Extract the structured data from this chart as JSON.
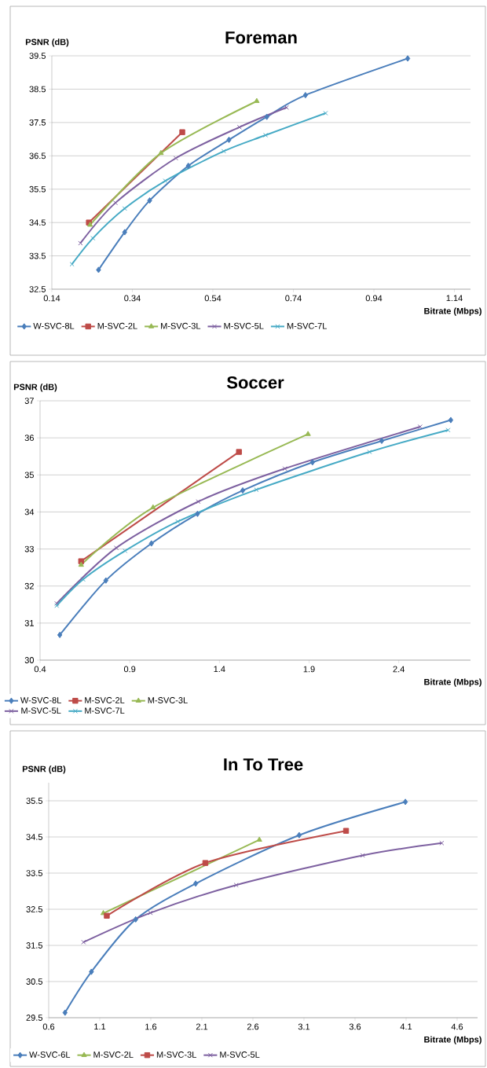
{
  "chart_data": [
    {
      "type": "line",
      "title": "Foreman",
      "xlabel": "Bitrate (Mbps)",
      "ylabel": "PSNR (dB)",
      "xlim": [
        0.14,
        1.18
      ],
      "ylim": [
        32.5,
        39.5
      ],
      "xticks": [
        0.14,
        0.34,
        0.54,
        0.74,
        0.94,
        1.14
      ],
      "yticks": [
        32.5,
        33.5,
        34.5,
        35.5,
        36.5,
        37.5,
        38.5,
        39.5
      ],
      "grid": "y",
      "legend": "bottom",
      "line_style": "solid",
      "series": [
        {
          "name": "W-SVC-8L",
          "color": "#4a7ebb",
          "marker": "diamond",
          "x": [
            0.256,
            0.321,
            0.383,
            0.479,
            0.58,
            0.674,
            0.77,
            1.024
          ],
          "values": [
            33.08,
            34.21,
            35.16,
            36.2,
            36.98,
            37.67,
            38.32,
            39.42
          ]
        },
        {
          "name": "M-SVC-2L",
          "color": "#be4b48",
          "marker": "square",
          "x": [
            0.232,
            0.464
          ],
          "values": [
            34.5,
            37.21
          ]
        },
        {
          "name": "M-SVC-3L",
          "color": "#98b954",
          "marker": "triangle",
          "x": [
            0.235,
            0.411,
            0.649
          ],
          "values": [
            34.43,
            36.58,
            38.14
          ]
        },
        {
          "name": "M-SVC-5L",
          "color": "#7d60a0",
          "marker": "cross",
          "x": [
            0.211,
            0.298,
            0.448,
            0.606,
            0.723
          ],
          "values": [
            33.88,
            35.09,
            36.43,
            37.36,
            37.95
          ]
        },
        {
          "name": "M-SVC-7L",
          "color": "#46aac5",
          "marker": "cross",
          "x": [
            0.19,
            0.242,
            0.321,
            0.422,
            0.567,
            0.671,
            0.82
          ],
          "values": [
            33.25,
            34.03,
            34.92,
            35.75,
            36.64,
            37.12,
            37.78
          ]
        }
      ]
    },
    {
      "type": "line",
      "title": "Soccer",
      "xlabel": "Bitrate (Mbps)",
      "ylabel": "PSNR (dB)",
      "xlim": [
        0.4,
        2.8
      ],
      "ylim": [
        30,
        37
      ],
      "xticks": [
        0.4,
        0.9,
        1.4,
        1.9,
        2.4
      ],
      "yticks": [
        30,
        31,
        32,
        33,
        34,
        35,
        36,
        37
      ],
      "grid": "y",
      "legend": "bottom",
      "line_style": "solid",
      "series": [
        {
          "name": "W-SVC-8L",
          "color": "#4a7ebb",
          "marker": "diamond",
          "x": [
            0.51,
            0.767,
            1.021,
            1.278,
            1.53,
            1.919,
            2.305,
            2.69
          ],
          "values": [
            30.68,
            32.15,
            33.15,
            33.95,
            34.58,
            35.34,
            35.92,
            36.48
          ]
        },
        {
          "name": "M-SVC-2L",
          "color": "#be4b48",
          "marker": "square",
          "x": [
            0.629,
            1.509
          ],
          "values": [
            32.67,
            35.62
          ]
        },
        {
          "name": "M-SVC-3L",
          "color": "#98b954",
          "marker": "triangle",
          "x": [
            0.629,
            1.03,
            1.894
          ],
          "values": [
            32.57,
            34.12,
            36.1
          ]
        },
        {
          "name": "M-SVC-5L",
          "color": "#7d60a0",
          "marker": "cross",
          "x": [
            0.493,
            0.825,
            1.282,
            1.765,
            2.519
          ],
          "values": [
            31.53,
            33.03,
            34.28,
            35.17,
            36.3
          ]
        },
        {
          "name": "M-SVC-7L",
          "color": "#46aac5",
          "marker": "cross",
          "x": [
            0.493,
            0.64,
            0.874,
            1.168,
            1.606,
            2.237,
            2.675
          ],
          "values": [
            31.47,
            32.18,
            32.95,
            33.74,
            34.6,
            35.62,
            36.21
          ]
        }
      ]
    },
    {
      "type": "line",
      "title": "In To Tree",
      "xlabel": "Bitrate (Mbps)",
      "ylabel": "PSNR (dB)",
      "xlim": [
        0.6,
        4.8
      ],
      "ylim": [
        29.5,
        36
      ],
      "xticks": [
        0.6,
        1.1,
        1.6,
        2.1,
        2.6,
        3.1,
        3.6,
        4.1,
        4.6
      ],
      "yticks": [
        29.5,
        30.5,
        31.5,
        32.5,
        33.5,
        34.5,
        35.5
      ],
      "grid": "y",
      "legend": "bottom",
      "line_style": "solid",
      "series": [
        {
          "name": "W-SVC-6L",
          "color": "#4a7ebb",
          "marker": "diamond",
          "x": [
            0.76,
            1.018,
            1.452,
            2.039,
            3.053,
            4.093
          ],
          "values": [
            29.64,
            30.77,
            32.22,
            33.21,
            34.55,
            35.47
          ]
        },
        {
          "name": "M-SVC-2L",
          "color": "#98b954",
          "marker": "triangle",
          "x": [
            1.135,
            2.663
          ],
          "values": [
            32.39,
            34.42
          ]
        },
        {
          "name": "M-SVC-3L",
          "color": "#be4b48",
          "marker": "square",
          "x": [
            1.169,
            2.134,
            3.512
          ],
          "values": [
            32.32,
            33.78,
            34.67
          ]
        },
        {
          "name": "M-SVC-5L",
          "color": "#7d60a0",
          "marker": "cross",
          "x": [
            0.941,
            1.596,
            2.436,
            3.675,
            4.449
          ],
          "values": [
            31.59,
            32.4,
            33.17,
            33.99,
            34.33
          ]
        }
      ]
    }
  ]
}
